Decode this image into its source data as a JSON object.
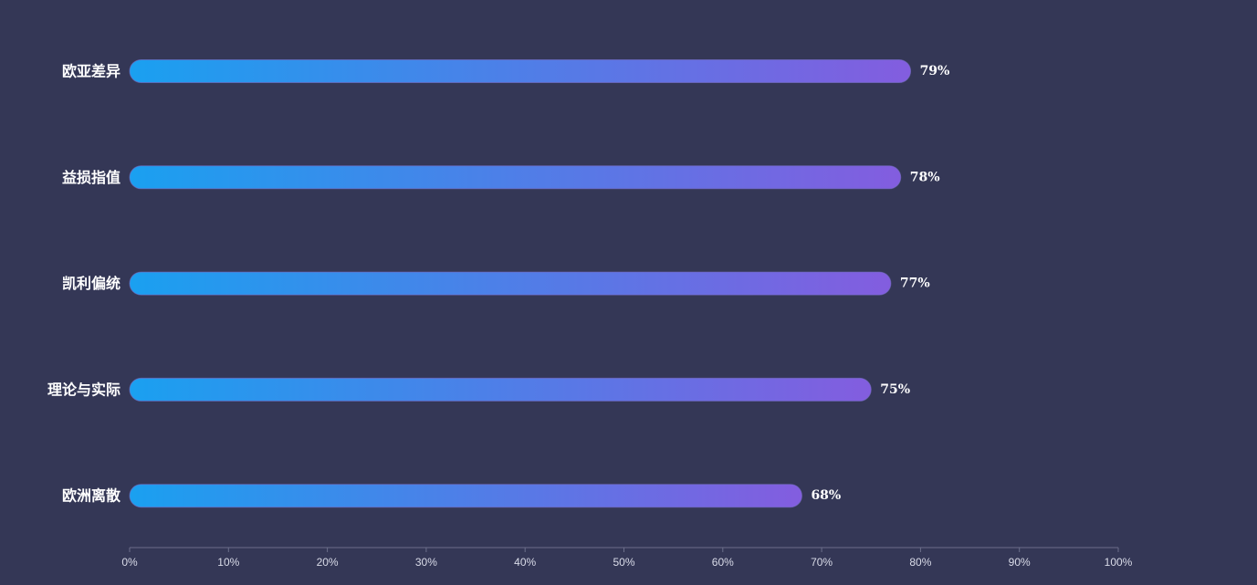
{
  "chart_data": {
    "type": "bar",
    "orientation": "horizontal",
    "categories": [
      "欧亚差异",
      "益损指值",
      "凯利偏统",
      "理论与实际",
      "欧洲离散"
    ],
    "values": [
      79,
      78,
      77,
      75,
      68
    ],
    "value_labels": [
      "79%",
      "78%",
      "77%",
      "75%",
      "68%"
    ],
    "xlim": [
      0,
      100
    ],
    "x_ticks": [
      0,
      10,
      20,
      30,
      40,
      50,
      60,
      70,
      80,
      90,
      100
    ],
    "x_tick_labels": [
      "0%",
      "10%",
      "20%",
      "30%",
      "40%",
      "50%",
      "60%",
      "70%",
      "80%",
      "90%",
      "100%"
    ],
    "title": "",
    "xlabel": "",
    "ylabel": "",
    "grid": false,
    "legend": "none",
    "colors": {
      "background": "#343756",
      "bar_gradient_start": "#1aa0f0",
      "bar_gradient_end": "#835ddf",
      "axis_line": "#6b6e8a",
      "text": "#ffffff"
    }
  }
}
